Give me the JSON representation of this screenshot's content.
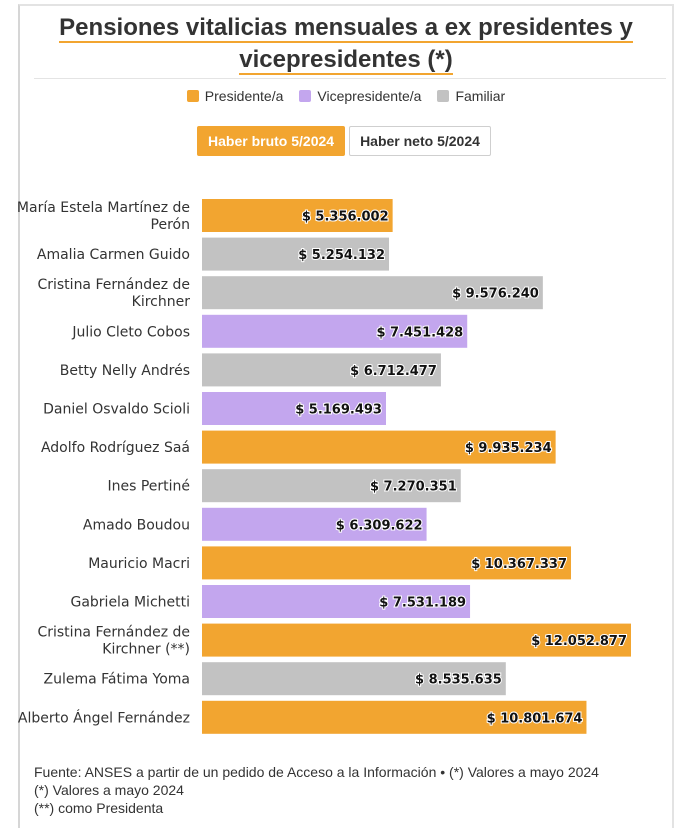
{
  "title": "Pensiones vitalicias mensuales a ex presidentes y vicepresidentes (*)",
  "legend": [
    {
      "label": "Presidente/a",
      "color": "#f2a530"
    },
    {
      "label": "Vicepresidente/a",
      "color": "#c3a6ee"
    },
    {
      "label": "Familiar",
      "color": "#c2c2c2"
    }
  ],
  "toggles": {
    "bruto": "Haber bruto 5/2024",
    "neto": "Haber neto 5/2024"
  },
  "footnotes": [
    "Fuente: ANSES a partir de un pedido de Acceso a la Información • (*) Valores a mayo 2024",
    "(*) Valores a mayo 2024",
    "(**) como Presidenta"
  ],
  "chart_data": {
    "type": "bar",
    "orientation": "horizontal",
    "categories": [
      [
        "María Estela Martínez de",
        "Perón"
      ],
      [
        "Amalia Carmen Guido"
      ],
      [
        "Cristina Fernández de",
        "Kirchner"
      ],
      [
        "Julio Cleto Cobos"
      ],
      [
        "Betty Nelly Andrés"
      ],
      [
        "Daniel Osvaldo Scioli"
      ],
      [
        "Adolfo Rodríguez Saá"
      ],
      [
        "Ines Pertiné"
      ],
      [
        "Amado Boudou"
      ],
      [
        "Mauricio Macri"
      ],
      [
        "Gabriela Michetti"
      ],
      [
        "Cristina Fernández de",
        "Kirchner (**)"
      ],
      [
        "Zulema Fátima Yoma"
      ],
      [
        "Alberto Ángel Fernández"
      ]
    ],
    "values": [
      5356002,
      5254132,
      9576240,
      7451428,
      6712477,
      5169493,
      9935234,
      7270351,
      6309622,
      10367337,
      7531189,
      12052877,
      8535635,
      10801674
    ],
    "labels": [
      "$ 5.356.002",
      "$ 5.254.132",
      "$ 9.576.240",
      "$ 7.451.428",
      "$ 6.712.477",
      "$ 5.169.493",
      "$ 9.935.234",
      "$ 7.270.351",
      "$ 6.309.622",
      "$ 10.367.337",
      "$ 7.531.189",
      "$ 12.052.877",
      "$ 8.535.635",
      "$ 10.801.674"
    ],
    "groups": [
      "Presidente/a",
      "Familiar",
      "Familiar",
      "Vicepresidente/a",
      "Familiar",
      "Vicepresidente/a",
      "Presidente/a",
      "Familiar",
      "Vicepresidente/a",
      "Presidente/a",
      "Vicepresidente/a",
      "Presidente/a",
      "Familiar",
      "Presidente/a"
    ],
    "xlim": [
      0,
      12052877
    ]
  }
}
